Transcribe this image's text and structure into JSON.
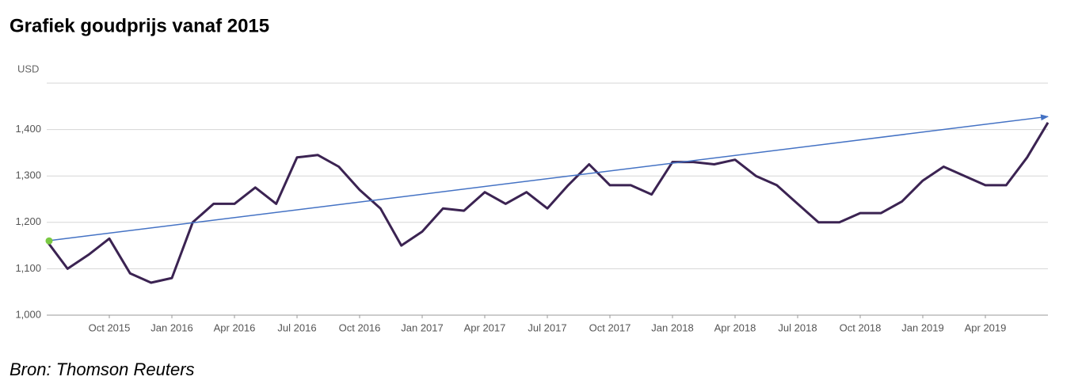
{
  "chart_data": {
    "type": "line",
    "title": "Grafiek goudprijs vanaf 2015",
    "y_unit": "USD",
    "source": "Bron: Thomson Reuters",
    "x": [
      "2015-07",
      "2015-08",
      "2015-09",
      "2015-10",
      "2015-11",
      "2015-12",
      "2016-01",
      "2016-02",
      "2016-03",
      "2016-04",
      "2016-05",
      "2016-06",
      "2016-07",
      "2016-08",
      "2016-09",
      "2016-10",
      "2016-11",
      "2016-12",
      "2017-01",
      "2017-02",
      "2017-03",
      "2017-04",
      "2017-05",
      "2017-06",
      "2017-07",
      "2017-08",
      "2017-09",
      "2017-10",
      "2017-11",
      "2017-12",
      "2018-01",
      "2018-02",
      "2018-03",
      "2018-04",
      "2018-05",
      "2018-06",
      "2018-07",
      "2018-08",
      "2018-09",
      "2018-10",
      "2018-11",
      "2018-12",
      "2019-01",
      "2019-02",
      "2019-03",
      "2019-04",
      "2019-05",
      "2019-06",
      "2019-07"
    ],
    "series": [
      {
        "name": "Goudprijs",
        "color": "#3b2352",
        "values": [
          1160,
          1100,
          1130,
          1165,
          1090,
          1070,
          1080,
          1200,
          1240,
          1240,
          1275,
          1240,
          1340,
          1345,
          1320,
          1270,
          1230,
          1150,
          1180,
          1230,
          1225,
          1265,
          1240,
          1265,
          1230,
          1280,
          1325,
          1280,
          1280,
          1260,
          1330,
          1330,
          1325,
          1335,
          1300,
          1280,
          1240,
          1200,
          1200,
          1220,
          1220,
          1245,
          1290,
          1320,
          1300,
          1280,
          1280,
          1340,
          1415
        ]
      }
    ],
    "trend": {
      "x": [
        "2015-07",
        "2019-07"
      ],
      "values": [
        1160,
        1428
      ],
      "color": "#4472c4",
      "start_color": "#7ac943"
    },
    "xlim": [
      "2015-07",
      "2019-07"
    ],
    "xticks": [
      {
        "value": "2015-10",
        "label": "Oct 2015"
      },
      {
        "value": "2016-01",
        "label": "Jan 2016"
      },
      {
        "value": "2016-04",
        "label": "Apr 2016"
      },
      {
        "value": "2016-07",
        "label": "Jul 2016"
      },
      {
        "value": "2016-10",
        "label": "Oct 2016"
      },
      {
        "value": "2017-01",
        "label": "Jan 2017"
      },
      {
        "value": "2017-04",
        "label": "Apr 2017"
      },
      {
        "value": "2017-07",
        "label": "Jul 2017"
      },
      {
        "value": "2017-10",
        "label": "Oct 2017"
      },
      {
        "value": "2018-01",
        "label": "Jan 2018"
      },
      {
        "value": "2018-04",
        "label": "Apr 2018"
      },
      {
        "value": "2018-07",
        "label": "Jul 2018"
      },
      {
        "value": "2018-10",
        "label": "Oct 2018"
      },
      {
        "value": "2019-01",
        "label": "Jan 2019"
      },
      {
        "value": "2019-04",
        "label": "Apr 2019"
      }
    ],
    "ylim": [
      1000,
      1500
    ],
    "yticks": [
      {
        "value": 1000,
        "label": "1,000"
      },
      {
        "value": 1100,
        "label": "1,100"
      },
      {
        "value": 1200,
        "label": "1,200"
      },
      {
        "value": 1300,
        "label": "1,300"
      },
      {
        "value": 1400,
        "label": "1,400"
      }
    ],
    "grid": true
  }
}
